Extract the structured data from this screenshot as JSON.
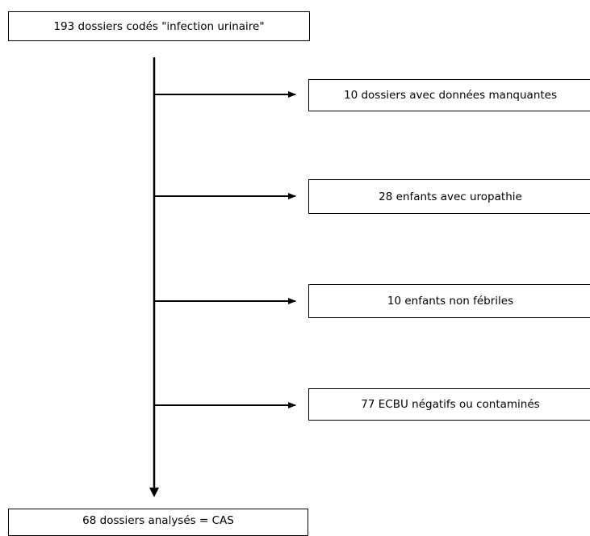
{
  "diagram": {
    "start_box": "193 dossiers codés \"infection urinaire\"",
    "exclusions": [
      "10 dossiers avec données manquantes",
      "28 enfants avec uropathie",
      "10 enfants non fébriles",
      "77 ECBU négatifs ou contaminés"
    ],
    "end_box": "68 dossiers analysés = CAS",
    "line_color": "#000000"
  }
}
